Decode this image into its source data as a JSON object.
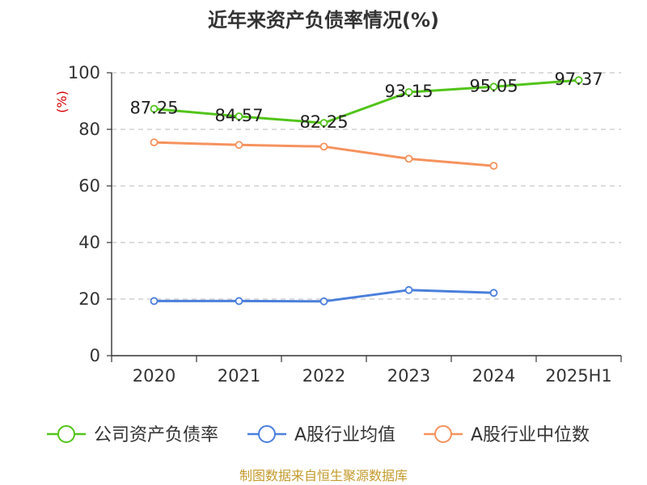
{
  "chart_data": {
    "type": "line",
    "title": "近年来资产负债率情况(%)",
    "ylabel": "(%)",
    "xlabel": "",
    "categories": [
      "2020",
      "2021",
      "2022",
      "2023",
      "2024",
      "2025H1"
    ],
    "ylim": [
      0,
      100
    ],
    "yticks": [
      0,
      20,
      40,
      60,
      80,
      100
    ],
    "grid": true,
    "legend_position": "bottom",
    "series": [
      {
        "name": "公司资产负债率",
        "color": "#52c41a",
        "values": [
          87.25,
          84.57,
          82.25,
          93.15,
          95.05,
          97.37
        ],
        "labels": [
          "87.25",
          "84.57",
          "82.25",
          "93.15",
          "95.05",
          "97.37"
        ]
      },
      {
        "name": "A股行业均值",
        "color": "#4a7fdc",
        "values": [
          19.3,
          19.3,
          19.2,
          23.2,
          22.2,
          null
        ],
        "labels": []
      },
      {
        "name": "A股行业中位数",
        "color": "#f6925e",
        "values": [
          75.4,
          74.5,
          73.9,
          69.6,
          67.1,
          null
        ],
        "labels": []
      }
    ],
    "source": "制图数据来自恒生聚源数据库"
  }
}
